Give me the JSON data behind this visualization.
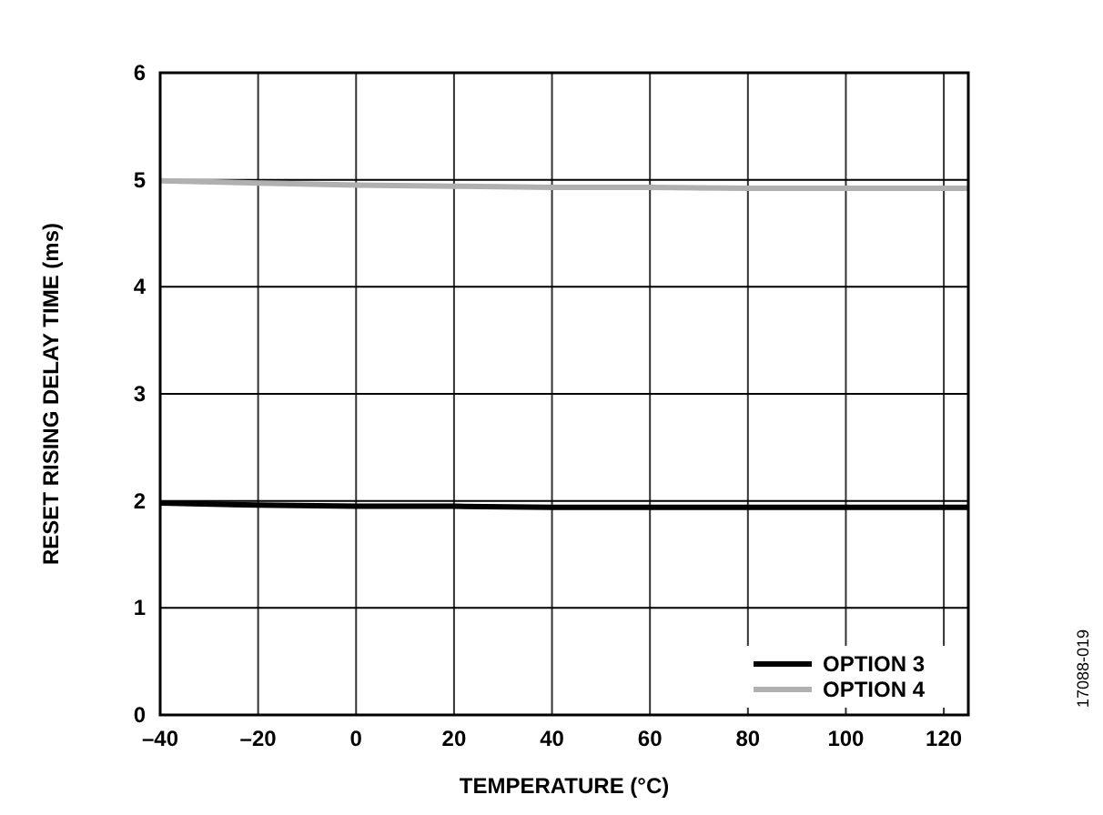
{
  "chart_data": {
    "type": "line",
    "xlabel": "TEMPERATURE (°C)",
    "ylabel": "RESET RISING DELAY TIME (ms)",
    "x": [
      -40,
      -20,
      0,
      20,
      40,
      60,
      80,
      100,
      125
    ],
    "series": [
      {
        "name": "OPTION 3",
        "color": "#000000",
        "values": [
          1.98,
          1.96,
          1.95,
          1.95,
          1.94,
          1.94,
          1.94,
          1.94,
          1.94
        ]
      },
      {
        "name": "OPTION 4",
        "color": "#b0b0b0",
        "values": [
          4.99,
          4.97,
          4.95,
          4.94,
          4.93,
          4.93,
          4.92,
          4.92,
          4.92
        ]
      }
    ],
    "xlim": [
      -40,
      125
    ],
    "xticks": [
      {
        "value": -40,
        "label": "–40"
      },
      {
        "value": -20,
        "label": "–20"
      },
      0,
      20,
      40,
      60,
      80,
      100,
      120
    ],
    "ylim": [
      0,
      6
    ],
    "yticks": [
      0,
      1,
      2,
      3,
      4,
      5,
      6
    ],
    "grid": true,
    "legend": "bottom right",
    "line_style": "solid",
    "annotations": [
      "17088-019"
    ]
  }
}
